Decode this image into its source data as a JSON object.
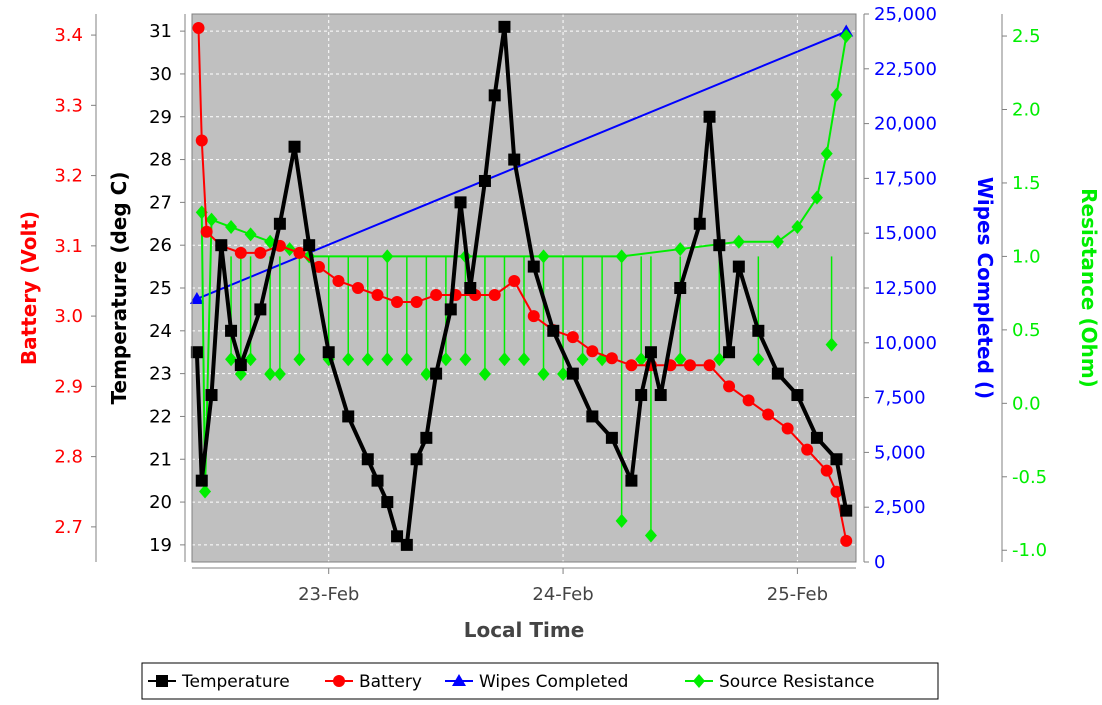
{
  "chart_data": {
    "type": "line",
    "xlabel": "Local Time",
    "x_ticks": [
      "23-Feb",
      "24-Feb",
      "25-Feb"
    ],
    "x_range": [
      "22-Feb 10:00",
      "25-Feb 06:00"
    ],
    "grid": true,
    "legend_placement": "bottom",
    "background": "#c0c0c0",
    "axes": [
      {
        "id": "battery",
        "label": "Battery (Volt)",
        "color": "#ff0000",
        "range": [
          2.65,
          3.43
        ],
        "ticks": [
          "2.7",
          "2.8",
          "2.9",
          "3.0",
          "3.1",
          "3.2",
          "3.3",
          "3.4"
        ]
      },
      {
        "id": "temperature",
        "label": "Temperature (deg C)",
        "color": "#000000",
        "range": [
          18.6,
          31.4
        ],
        "ticks": [
          "19",
          "20",
          "21",
          "22",
          "23",
          "24",
          "25",
          "26",
          "27",
          "28",
          "29",
          "30",
          "31"
        ]
      },
      {
        "id": "wipes",
        "label": "Wipes Completed ()",
        "color": "#0000ff",
        "range": [
          0,
          25000
        ],
        "ticks": [
          "0",
          "2,500",
          "5,000",
          "7,500",
          "10,000",
          "12,500",
          "15,000",
          "17,500",
          "20,000",
          "22,500",
          "25,000"
        ]
      },
      {
        "id": "resistance",
        "label": "Resistance (Ohm)",
        "color": "#00ee00",
        "range": [
          -1.08,
          2.65
        ],
        "ticks": [
          "-1.0",
          "-0.5",
          "0.0",
          "0.5",
          "1.0",
          "1.5",
          "2.0",
          "2.5"
        ]
      }
    ],
    "series": [
      {
        "name": "Temperature",
        "axis": "temperature",
        "color": "#000000",
        "marker": "square",
        "points": [
          [
            "22-Feb 10:30",
            23.5
          ],
          [
            "22-Feb 11:00",
            20.5
          ],
          [
            "22-Feb 12:00",
            22.5
          ],
          [
            "22-Feb 13:00",
            26.0
          ],
          [
            "22-Feb 14:00",
            24.0
          ],
          [
            "22-Feb 15:00",
            23.2
          ],
          [
            "22-Feb 17:00",
            24.5
          ],
          [
            "22-Feb 19:00",
            26.5
          ],
          [
            "22-Feb 20:30",
            28.3
          ],
          [
            "22-Feb 22:00",
            26.0
          ],
          [
            "23-Feb 00:00",
            23.5
          ],
          [
            "23-Feb 02:00",
            22.0
          ],
          [
            "23-Feb 04:00",
            21.0
          ],
          [
            "23-Feb 05:00",
            20.5
          ],
          [
            "23-Feb 06:00",
            20.0
          ],
          [
            "23-Feb 07:00",
            19.2
          ],
          [
            "23-Feb 08:00",
            19.0
          ],
          [
            "23-Feb 09:00",
            21.0
          ],
          [
            "23-Feb 10:00",
            21.5
          ],
          [
            "23-Feb 11:00",
            23.0
          ],
          [
            "23-Feb 12:30",
            24.5
          ],
          [
            "23-Feb 13:30",
            27.0
          ],
          [
            "23-Feb 14:30",
            25.0
          ],
          [
            "23-Feb 16:00",
            27.5
          ],
          [
            "23-Feb 17:00",
            29.5
          ],
          [
            "23-Feb 18:00",
            31.1
          ],
          [
            "23-Feb 19:00",
            28.0
          ],
          [
            "23-Feb 21:00",
            25.5
          ],
          [
            "23-Feb 23:00",
            24.0
          ],
          [
            "24-Feb 01:00",
            23.0
          ],
          [
            "24-Feb 03:00",
            22.0
          ],
          [
            "24-Feb 05:00",
            21.5
          ],
          [
            "24-Feb 07:00",
            20.5
          ],
          [
            "24-Feb 08:00",
            22.5
          ],
          [
            "24-Feb 09:00",
            23.5
          ],
          [
            "24-Feb 10:00",
            22.5
          ],
          [
            "24-Feb 12:00",
            25.0
          ],
          [
            "24-Feb 14:00",
            26.5
          ],
          [
            "24-Feb 15:00",
            29.0
          ],
          [
            "24-Feb 16:00",
            26.0
          ],
          [
            "24-Feb 17:00",
            23.5
          ],
          [
            "24-Feb 18:00",
            25.5
          ],
          [
            "24-Feb 20:00",
            24.0
          ],
          [
            "24-Feb 22:00",
            23.0
          ],
          [
            "25-Feb 00:00",
            22.5
          ],
          [
            "25-Feb 02:00",
            21.5
          ],
          [
            "25-Feb 04:00",
            21.0
          ],
          [
            "25-Feb 05:00",
            19.8
          ]
        ]
      },
      {
        "name": "Battery",
        "axis": "battery",
        "color": "#ff0000",
        "marker": "circle",
        "points": [
          [
            "22-Feb 10:40",
            3.41
          ],
          [
            "22-Feb 11:00",
            3.25
          ],
          [
            "22-Feb 11:30",
            3.12
          ],
          [
            "22-Feb 13:00",
            3.1
          ],
          [
            "22-Feb 15:00",
            3.09
          ],
          [
            "22-Feb 17:00",
            3.09
          ],
          [
            "22-Feb 19:00",
            3.1
          ],
          [
            "22-Feb 21:00",
            3.09
          ],
          [
            "22-Feb 23:00",
            3.07
          ],
          [
            "23-Feb 01:00",
            3.05
          ],
          [
            "23-Feb 03:00",
            3.04
          ],
          [
            "23-Feb 05:00",
            3.03
          ],
          [
            "23-Feb 07:00",
            3.02
          ],
          [
            "23-Feb 09:00",
            3.02
          ],
          [
            "23-Feb 11:00",
            3.03
          ],
          [
            "23-Feb 13:00",
            3.03
          ],
          [
            "23-Feb 15:00",
            3.03
          ],
          [
            "23-Feb 17:00",
            3.03
          ],
          [
            "23-Feb 19:00",
            3.05
          ],
          [
            "23-Feb 21:00",
            3.0
          ],
          [
            "23-Feb 23:00",
            2.98
          ],
          [
            "24-Feb 01:00",
            2.97
          ],
          [
            "24-Feb 03:00",
            2.95
          ],
          [
            "24-Feb 05:00",
            2.94
          ],
          [
            "24-Feb 07:00",
            2.93
          ],
          [
            "24-Feb 09:00",
            2.93
          ],
          [
            "24-Feb 11:00",
            2.93
          ],
          [
            "24-Feb 13:00",
            2.93
          ],
          [
            "24-Feb 15:00",
            2.93
          ],
          [
            "24-Feb 17:00",
            2.9
          ],
          [
            "24-Feb 19:00",
            2.88
          ],
          [
            "24-Feb 21:00",
            2.86
          ],
          [
            "24-Feb 23:00",
            2.84
          ],
          [
            "25-Feb 01:00",
            2.81
          ],
          [
            "25-Feb 03:00",
            2.78
          ],
          [
            "25-Feb 04:00",
            2.75
          ],
          [
            "25-Feb 05:00",
            2.68
          ]
        ]
      },
      {
        "name": "Wipes Completed",
        "axis": "wipes",
        "color": "#0000ff",
        "marker": "triangle",
        "points": [
          [
            "22-Feb 10:30",
            12000
          ],
          [
            "25-Feb 05:00",
            24200
          ]
        ]
      },
      {
        "name": "Source Resistance",
        "axis": "resistance",
        "color": "#00ee00",
        "marker": "diamond",
        "points": [
          [
            "22-Feb 11:00",
            1.3
          ],
          [
            "22-Feb 11:20",
            -0.6
          ],
          [
            "22-Feb 12:00",
            1.25
          ],
          [
            "22-Feb 14:00",
            1.2
          ],
          [
            "22-Feb 16:00",
            1.15
          ],
          [
            "22-Feb 18:00",
            1.1
          ],
          [
            "22-Feb 20:00",
            1.05
          ],
          [
            "22-Feb 22:00",
            1.0
          ],
          [
            "23-Feb 06:00",
            1.0
          ],
          [
            "23-Feb 14:00",
            1.0
          ],
          [
            "23-Feb 22:00",
            1.0
          ],
          [
            "24-Feb 06:00",
            1.0
          ],
          [
            "24-Feb 12:00",
            1.05
          ],
          [
            "24-Feb 18:00",
            1.1
          ],
          [
            "24-Feb 22:00",
            1.1
          ],
          [
            "25-Feb 00:00",
            1.2
          ],
          [
            "25-Feb 02:00",
            1.4
          ],
          [
            "25-Feb 03:00",
            1.7
          ],
          [
            "25-Feb 04:00",
            2.1
          ],
          [
            "25-Feb 05:00",
            2.5
          ]
        ],
        "dips": [
          [
            "22-Feb 14:00",
            0.3
          ],
          [
            "22-Feb 15:00",
            0.2
          ],
          [
            "22-Feb 16:00",
            0.3
          ],
          [
            "22-Feb 18:00",
            0.2
          ],
          [
            "22-Feb 19:00",
            0.2
          ],
          [
            "22-Feb 21:00",
            0.3
          ],
          [
            "23-Feb 00:00",
            0.3
          ],
          [
            "23-Feb 02:00",
            0.3
          ],
          [
            "23-Feb 04:00",
            0.3
          ],
          [
            "23-Feb 06:00",
            0.3
          ],
          [
            "23-Feb 08:00",
            0.3
          ],
          [
            "23-Feb 10:00",
            0.2
          ],
          [
            "23-Feb 12:00",
            0.3
          ],
          [
            "23-Feb 14:00",
            0.3
          ],
          [
            "23-Feb 16:00",
            0.2
          ],
          [
            "23-Feb 18:00",
            0.3
          ],
          [
            "23-Feb 20:00",
            0.3
          ],
          [
            "23-Feb 22:00",
            0.2
          ],
          [
            "24-Feb 00:00",
            0.2
          ],
          [
            "24-Feb 02:00",
            0.3
          ],
          [
            "24-Feb 04:00",
            0.3
          ],
          [
            "24-Feb 06:00",
            -0.8
          ],
          [
            "24-Feb 08:00",
            0.3
          ],
          [
            "24-Feb 09:00",
            -0.9
          ],
          [
            "24-Feb 12:00",
            0.3
          ],
          [
            "24-Feb 16:00",
            0.3
          ],
          [
            "24-Feb 20:00",
            0.3
          ],
          [
            "25-Feb 03:30",
            0.4
          ]
        ]
      }
    ],
    "legend": [
      "Temperature",
      "Battery",
      "Wipes Completed",
      "Source Resistance"
    ]
  }
}
